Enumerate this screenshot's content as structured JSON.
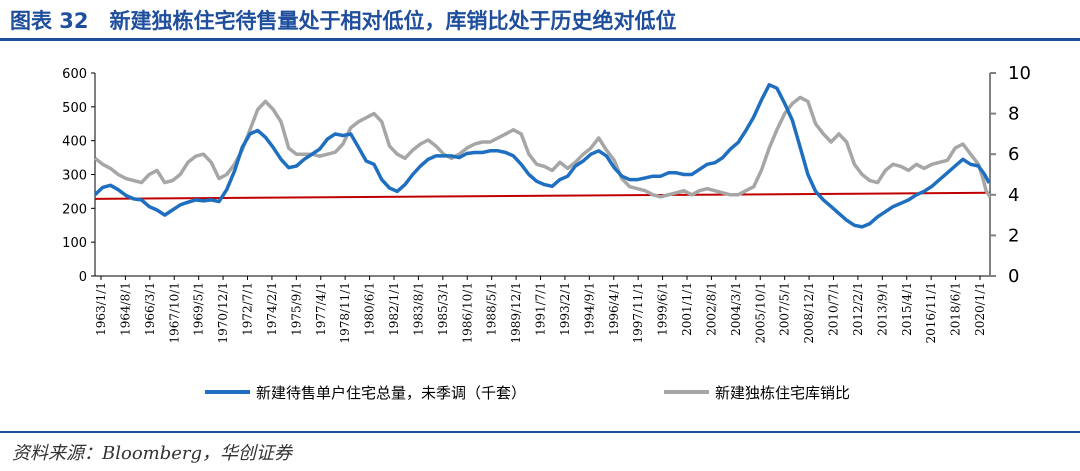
{
  "figure": {
    "title": "图表 32　新建独栋住宅待售量处于相对低位，库销比处于历史绝对低位",
    "source": "资料来源：Bloomberg，华创证券"
  },
  "colors": {
    "title": "#1f4e9c",
    "series1": "#1f6fc0",
    "series2": "#a6a6a6",
    "reference_line": "#c00000"
  },
  "chart_data": {
    "type": "line",
    "title": "",
    "xlabel": "",
    "x_tick_labels": [
      "1963/1/1",
      "1964/8/1",
      "1966/3/1",
      "1967/10/1",
      "1969/5/1",
      "1970/12/1",
      "1972/7/1",
      "1974/2/1",
      "1975/9/1",
      "1977/4/1",
      "1978/11/1",
      "1980/6/1",
      "1982/1/1",
      "1983/8/1",
      "1985/3/1",
      "1986/10/1",
      "1988/5/1",
      "1989/12/1",
      "1991/7/1",
      "1993/2/1",
      "1994/9/1",
      "1996/4/1",
      "1997/11/1",
      "1999/6/1",
      "2001/1/1",
      "2002/8/1",
      "2004/3/1",
      "2005/10/1",
      "2007/5/1",
      "2008/12/1",
      "2010/7/1",
      "2012/2/1",
      "2013/9/1",
      "2015/4/1",
      "2016/11/1",
      "2018/6/1",
      "2020/1/1"
    ],
    "x_range": [
      1963.0,
      2020.75
    ],
    "y_left": {
      "ylim": [
        0,
        600
      ],
      "ticks": [
        0,
        100,
        200,
        300,
        400,
        500,
        600
      ]
    },
    "y_right": {
      "ylim": [
        0,
        10
      ],
      "ticks": [
        0,
        2,
        4,
        6,
        8,
        10
      ]
    },
    "legend_position": "bottom",
    "series": [
      {
        "name": "新建待售单户住宅总量，未季调（千套）",
        "axis": "left",
        "points": [
          [
            1963.0,
            240
          ],
          [
            1963.5,
            262
          ],
          [
            1964.0,
            268
          ],
          [
            1964.5,
            255
          ],
          [
            1965.0,
            238
          ],
          [
            1965.5,
            228
          ],
          [
            1966.0,
            225
          ],
          [
            1966.5,
            205
          ],
          [
            1967.0,
            195
          ],
          [
            1967.5,
            180
          ],
          [
            1968.0,
            195
          ],
          [
            1968.5,
            210
          ],
          [
            1969.0,
            218
          ],
          [
            1969.5,
            225
          ],
          [
            1970.0,
            222
          ],
          [
            1970.5,
            225
          ],
          [
            1971.0,
            220
          ],
          [
            1971.5,
            255
          ],
          [
            1972.0,
            310
          ],
          [
            1972.5,
            380
          ],
          [
            1973.0,
            420
          ],
          [
            1973.5,
            430
          ],
          [
            1974.0,
            410
          ],
          [
            1974.5,
            380
          ],
          [
            1975.0,
            345
          ],
          [
            1975.5,
            320
          ],
          [
            1976.0,
            325
          ],
          [
            1976.5,
            345
          ],
          [
            1977.0,
            360
          ],
          [
            1977.5,
            375
          ],
          [
            1978.0,
            405
          ],
          [
            1978.5,
            420
          ],
          [
            1979.0,
            415
          ],
          [
            1979.5,
            420
          ],
          [
            1980.0,
            380
          ],
          [
            1980.5,
            340
          ],
          [
            1981.0,
            330
          ],
          [
            1981.5,
            285
          ],
          [
            1982.0,
            260
          ],
          [
            1982.5,
            250
          ],
          [
            1983.0,
            270
          ],
          [
            1983.5,
            300
          ],
          [
            1984.0,
            325
          ],
          [
            1984.5,
            345
          ],
          [
            1985.0,
            355
          ],
          [
            1985.5,
            355
          ],
          [
            1986.0,
            355
          ],
          [
            1986.5,
            350
          ],
          [
            1987.0,
            362
          ],
          [
            1987.5,
            365
          ],
          [
            1988.0,
            365
          ],
          [
            1988.5,
            370
          ],
          [
            1989.0,
            370
          ],
          [
            1989.5,
            365
          ],
          [
            1990.0,
            355
          ],
          [
            1990.5,
            330
          ],
          [
            1991.0,
            300
          ],
          [
            1991.5,
            280
          ],
          [
            1992.0,
            270
          ],
          [
            1992.5,
            265
          ],
          [
            1993.0,
            285
          ],
          [
            1993.5,
            295
          ],
          [
            1994.0,
            325
          ],
          [
            1994.5,
            340
          ],
          [
            1995.0,
            360
          ],
          [
            1995.5,
            370
          ],
          [
            1996.0,
            355
          ],
          [
            1996.5,
            320
          ],
          [
            1997.0,
            295
          ],
          [
            1997.5,
            285
          ],
          [
            1998.0,
            285
          ],
          [
            1998.5,
            290
          ],
          [
            1999.0,
            295
          ],
          [
            1999.5,
            295
          ],
          [
            2000.0,
            305
          ],
          [
            2000.5,
            305
          ],
          [
            2001.0,
            300
          ],
          [
            2001.5,
            300
          ],
          [
            2002.0,
            315
          ],
          [
            2002.5,
            330
          ],
          [
            2003.0,
            335
          ],
          [
            2003.5,
            350
          ],
          [
            2004.0,
            375
          ],
          [
            2004.5,
            395
          ],
          [
            2005.0,
            430
          ],
          [
            2005.5,
            470
          ],
          [
            2006.0,
            520
          ],
          [
            2006.5,
            565
          ],
          [
            2007.0,
            555
          ],
          [
            2007.5,
            510
          ],
          [
            2008.0,
            460
          ],
          [
            2008.5,
            380
          ],
          [
            2009.0,
            300
          ],
          [
            2009.5,
            250
          ],
          [
            2010.0,
            225
          ],
          [
            2010.5,
            205
          ],
          [
            2011.0,
            185
          ],
          [
            2011.5,
            165
          ],
          [
            2012.0,
            150
          ],
          [
            2012.5,
            145
          ],
          [
            2013.0,
            155
          ],
          [
            2013.5,
            175
          ],
          [
            2014.0,
            190
          ],
          [
            2014.5,
            205
          ],
          [
            2015.0,
            215
          ],
          [
            2015.5,
            225
          ],
          [
            2016.0,
            240
          ],
          [
            2016.5,
            250
          ],
          [
            2017.0,
            265
          ],
          [
            2017.5,
            285
          ],
          [
            2018.0,
            305
          ],
          [
            2018.5,
            325
          ],
          [
            2019.0,
            345
          ],
          [
            2019.5,
            330
          ],
          [
            2020.0,
            325
          ],
          [
            2020.4,
            300
          ],
          [
            2020.7,
            275
          ]
        ]
      },
      {
        "name": "新建独栋住宅库销比",
        "axis": "right",
        "points": [
          [
            1963.0,
            5.8
          ],
          [
            1963.5,
            5.5
          ],
          [
            1964.0,
            5.3
          ],
          [
            1964.5,
            5.0
          ],
          [
            1965.0,
            4.8
          ],
          [
            1965.5,
            4.7
          ],
          [
            1966.0,
            4.6
          ],
          [
            1966.5,
            5.0
          ],
          [
            1967.0,
            5.2
          ],
          [
            1967.5,
            4.6
          ],
          [
            1968.0,
            4.7
          ],
          [
            1968.5,
            5.0
          ],
          [
            1969.0,
            5.6
          ],
          [
            1969.5,
            5.9
          ],
          [
            1970.0,
            6.0
          ],
          [
            1970.5,
            5.6
          ],
          [
            1971.0,
            4.8
          ],
          [
            1971.5,
            5.0
          ],
          [
            1972.0,
            5.5
          ],
          [
            1972.5,
            6.2
          ],
          [
            1973.0,
            7.2
          ],
          [
            1973.5,
            8.2
          ],
          [
            1974.0,
            8.6
          ],
          [
            1974.5,
            8.2
          ],
          [
            1975.0,
            7.6
          ],
          [
            1975.5,
            6.3
          ],
          [
            1976.0,
            6.0
          ],
          [
            1976.5,
            6.0
          ],
          [
            1977.0,
            6.0
          ],
          [
            1977.5,
            5.9
          ],
          [
            1978.0,
            6.0
          ],
          [
            1978.5,
            6.1
          ],
          [
            1979.0,
            6.5
          ],
          [
            1979.5,
            7.3
          ],
          [
            1980.0,
            7.6
          ],
          [
            1980.5,
            7.8
          ],
          [
            1981.0,
            8.0
          ],
          [
            1981.5,
            7.6
          ],
          [
            1982.0,
            6.4
          ],
          [
            1982.5,
            6.0
          ],
          [
            1983.0,
            5.8
          ],
          [
            1983.5,
            6.2
          ],
          [
            1984.0,
            6.5
          ],
          [
            1984.5,
            6.7
          ],
          [
            1985.0,
            6.4
          ],
          [
            1985.5,
            6.0
          ],
          [
            1986.0,
            5.8
          ],
          [
            1986.5,
            6.0
          ],
          [
            1987.0,
            6.3
          ],
          [
            1987.5,
            6.5
          ],
          [
            1988.0,
            6.6
          ],
          [
            1988.5,
            6.6
          ],
          [
            1989.0,
            6.8
          ],
          [
            1989.5,
            7.0
          ],
          [
            1990.0,
            7.2
          ],
          [
            1990.5,
            7.0
          ],
          [
            1991.0,
            6.0
          ],
          [
            1991.5,
            5.5
          ],
          [
            1992.0,
            5.4
          ],
          [
            1992.5,
            5.2
          ],
          [
            1993.0,
            5.6
          ],
          [
            1993.5,
            5.3
          ],
          [
            1994.0,
            5.6
          ],
          [
            1994.5,
            6.0
          ],
          [
            1995.0,
            6.3
          ],
          [
            1995.5,
            6.8
          ],
          [
            1996.0,
            6.2
          ],
          [
            1996.5,
            5.7
          ],
          [
            1997.0,
            4.8
          ],
          [
            1997.5,
            4.4
          ],
          [
            1998.0,
            4.3
          ],
          [
            1998.5,
            4.2
          ],
          [
            1999.0,
            4.0
          ],
          [
            1999.5,
            3.9
          ],
          [
            2000.0,
            4.0
          ],
          [
            2000.5,
            4.1
          ],
          [
            2001.0,
            4.2
          ],
          [
            2001.5,
            4.0
          ],
          [
            2002.0,
            4.2
          ],
          [
            2002.5,
            4.3
          ],
          [
            2003.0,
            4.2
          ],
          [
            2003.5,
            4.1
          ],
          [
            2004.0,
            4.0
          ],
          [
            2004.5,
            4.0
          ],
          [
            2005.0,
            4.2
          ],
          [
            2005.5,
            4.4
          ],
          [
            2006.0,
            5.2
          ],
          [
            2006.5,
            6.3
          ],
          [
            2007.0,
            7.2
          ],
          [
            2007.5,
            8.0
          ],
          [
            2008.0,
            8.5
          ],
          [
            2008.5,
            8.8
          ],
          [
            2009.0,
            8.6
          ],
          [
            2009.5,
            7.5
          ],
          [
            2010.0,
            7.0
          ],
          [
            2010.5,
            6.6
          ],
          [
            2011.0,
            7.0
          ],
          [
            2011.5,
            6.6
          ],
          [
            2012.0,
            5.5
          ],
          [
            2012.5,
            5.0
          ],
          [
            2013.0,
            4.7
          ],
          [
            2013.5,
            4.6
          ],
          [
            2014.0,
            5.2
          ],
          [
            2014.5,
            5.5
          ],
          [
            2015.0,
            5.4
          ],
          [
            2015.5,
            5.2
          ],
          [
            2016.0,
            5.5
          ],
          [
            2016.5,
            5.3
          ],
          [
            2017.0,
            5.5
          ],
          [
            2017.5,
            5.6
          ],
          [
            2018.0,
            5.7
          ],
          [
            2018.5,
            6.3
          ],
          [
            2019.0,
            6.5
          ],
          [
            2019.5,
            6.0
          ],
          [
            2020.0,
            5.5
          ],
          [
            2020.3,
            4.8
          ],
          [
            2020.5,
            4.2
          ],
          [
            2020.75,
            3.9
          ]
        ]
      }
    ],
    "reference_line": {
      "axis": "right",
      "from": [
        1963.0,
        3.8
      ],
      "to": [
        2020.75,
        4.1
      ]
    }
  }
}
